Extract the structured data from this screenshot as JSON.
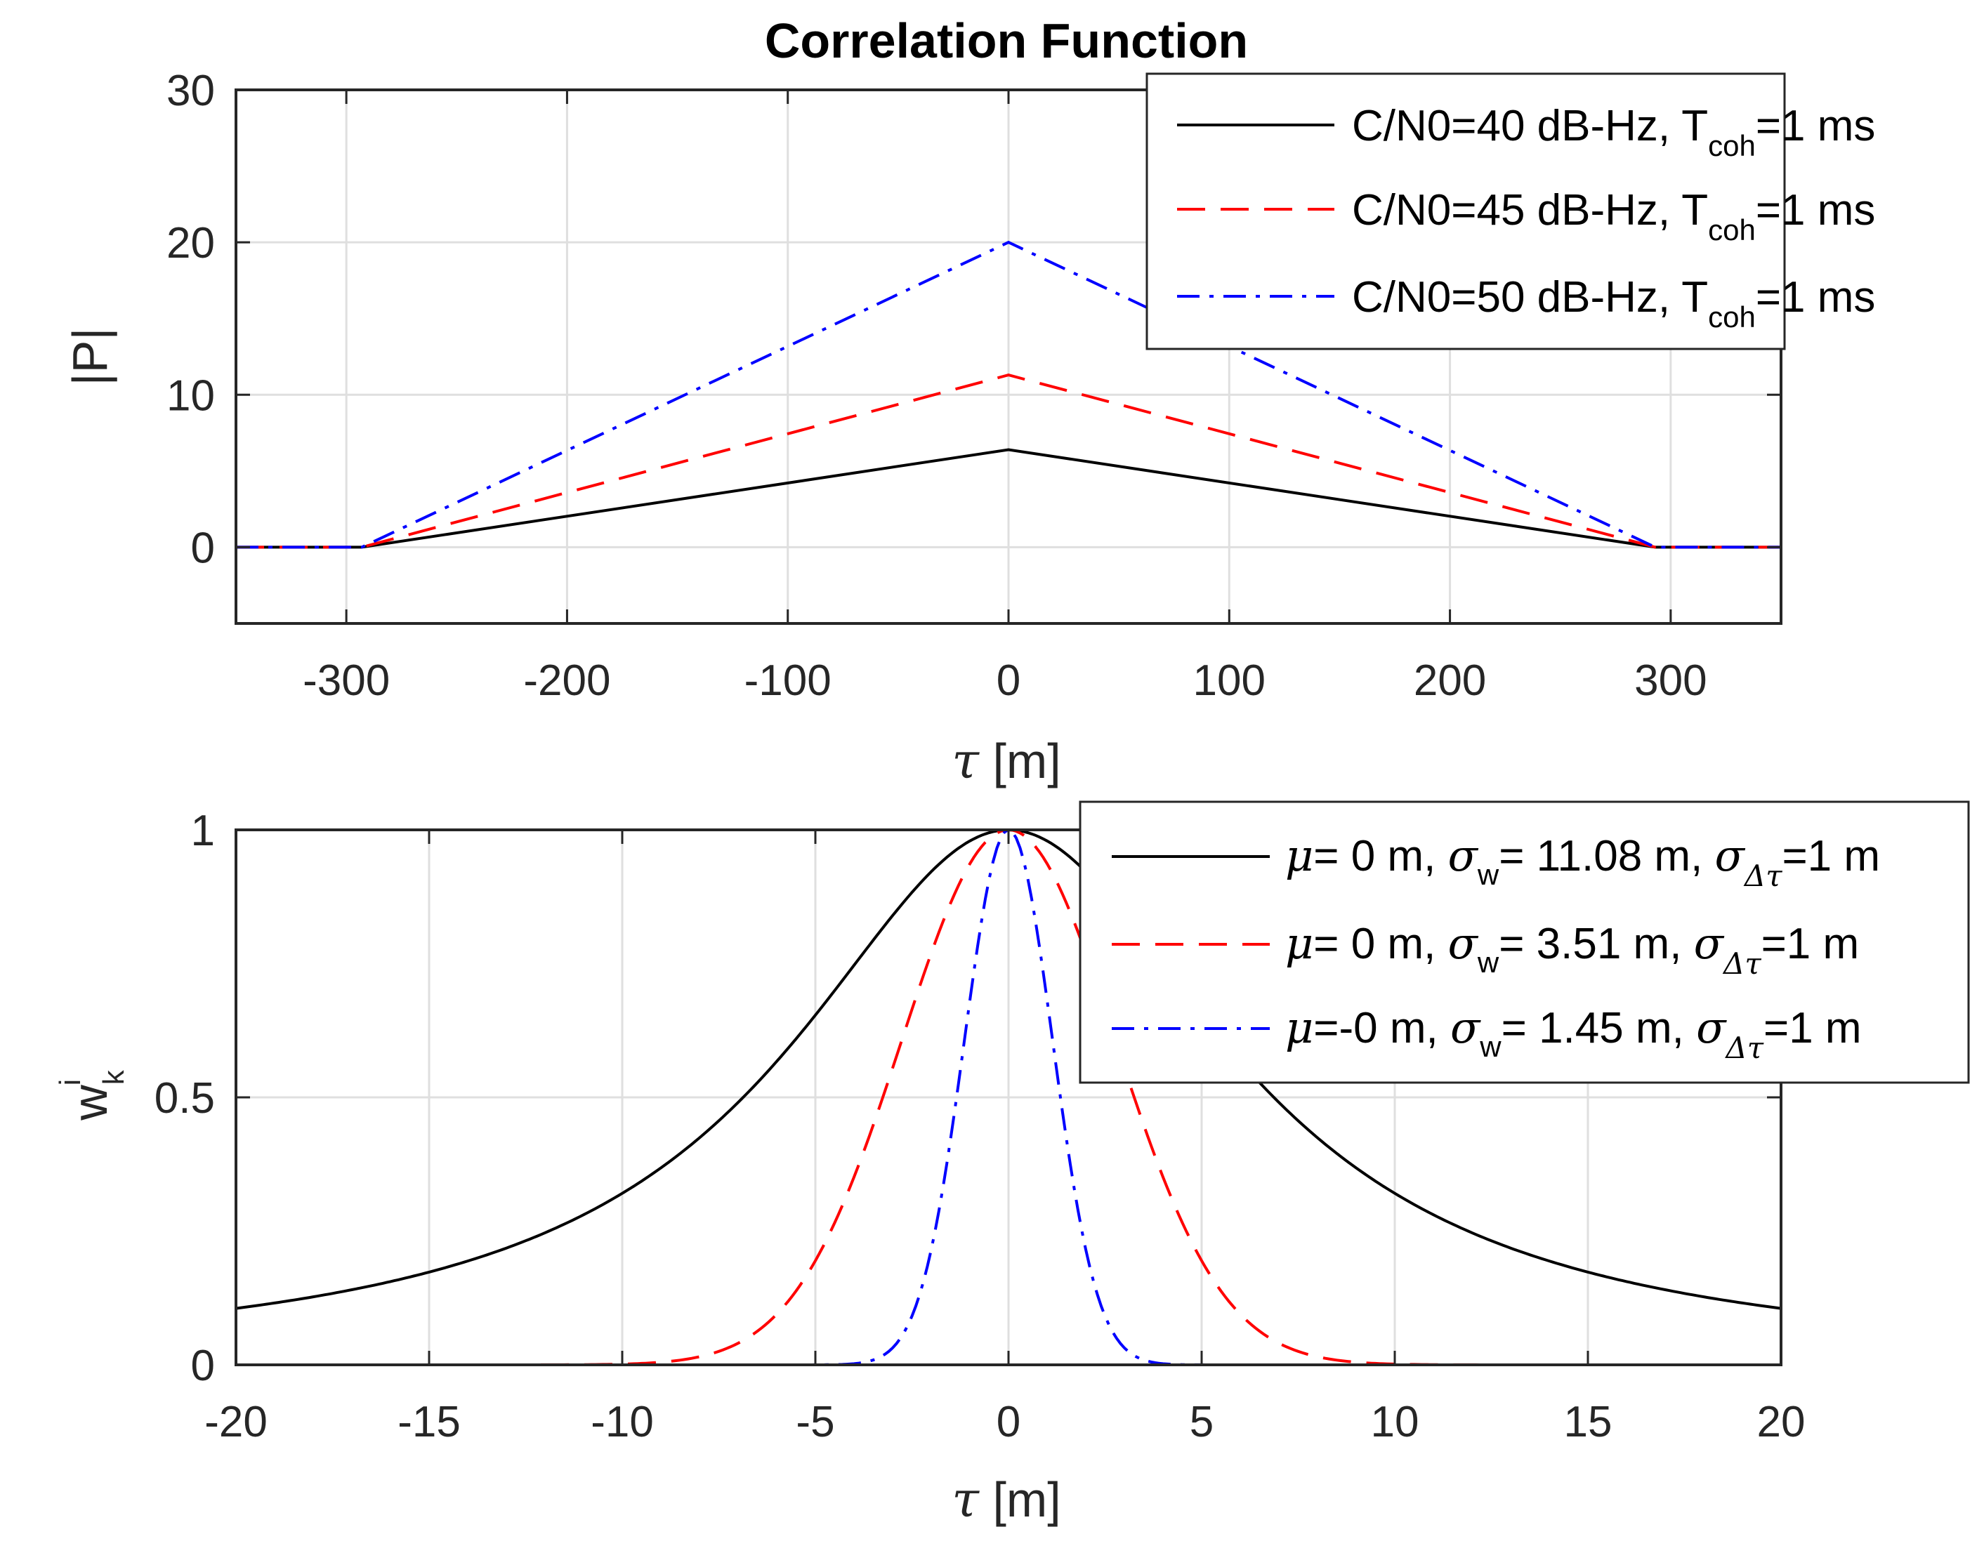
{
  "chart_data": [
    {
      "type": "line",
      "title": "Correlation Function",
      "xlabel_sym": "τ",
      "xlabel_unit": " [m]",
      "ylabel": "|P|",
      "xlim": [
        -350,
        350
      ],
      "ylim": [
        -5,
        30
      ],
      "xticks": [
        -300,
        -200,
        -100,
        0,
        100,
        200,
        300
      ],
      "yticks": [
        0,
        10,
        20,
        30
      ],
      "grid": true,
      "legend_position": "top-right",
      "series": [
        {
          "name": "C/N0=40 dB-Hz, T_coh=1 ms",
          "label_main": "C/N0=40 dB-Hz, T",
          "label_sub": "coh",
          "label_tail": "=1 ms",
          "color": "#000000",
          "style": "solid",
          "x": [
            -350,
            -293,
            0,
            293,
            350
          ],
          "y": [
            0,
            0,
            6.4,
            0,
            0
          ]
        },
        {
          "name": "C/N0=45 dB-Hz, T_coh=1 ms",
          "label_main": "C/N0=45 dB-Hz, T",
          "label_sub": "coh",
          "label_tail": "=1 ms",
          "color": "#ff0000",
          "style": "dashed",
          "x": [
            -350,
            -293,
            0,
            293,
            350
          ],
          "y": [
            0,
            0,
            11.3,
            0,
            0
          ]
        },
        {
          "name": "C/N0=50 dB-Hz, T_coh=1 ms",
          "label_main": "C/N0=50 dB-Hz, T",
          "label_sub": "coh",
          "label_tail": "=1 ms",
          "color": "#0000ff",
          "style": "dashdot",
          "x": [
            -350,
            -293,
            0,
            293,
            350
          ],
          "y": [
            0,
            0,
            20,
            0,
            0
          ]
        }
      ]
    },
    {
      "type": "line",
      "xlabel_sym": "τ",
      "xlabel_unit": " [m]",
      "ylabel_main": "w",
      "ylabel_sub": "k",
      "ylabel_sup": "i",
      "xlim": [
        -20,
        20
      ],
      "ylim": [
        0,
        1
      ],
      "xticks": [
        -20,
        -15,
        -10,
        -5,
        0,
        5,
        10,
        15,
        20
      ],
      "yticks": [
        0,
        0.5,
        1
      ],
      "grid": true,
      "legend_position": "top-right",
      "series": [
        {
          "name": "μ= 0 m, σ_w= 11.08 m, σ_Δτ=1 m",
          "mu": "= 0 m, ",
          "sw": "= 11.08 m, ",
          "sd": "=1 m",
          "color": "#000000",
          "style": "solid",
          "mu_val": 0,
          "sigma_w": 11.08,
          "sigma_dt": 1
        },
        {
          "name": "μ= 0 m, σ_w= 3.51 m, σ_Δτ=1 m",
          "mu": "= 0 m, ",
          "sw": "= 3.51 m, ",
          "sd": "=1 m",
          "color": "#ff0000",
          "style": "dashed",
          "mu_val": 0,
          "sigma_w": 3.51,
          "sigma_dt": 1
        },
        {
          "name": "μ=-0 m, σ_w= 1.45 m, σ_Δτ=1 m",
          "mu": "=-0 m, ",
          "sw": "= 1.45 m, ",
          "sd": "=1 m",
          "color": "#0000ff",
          "style": "dashdot",
          "mu_val": 0,
          "sigma_w": 1.45,
          "sigma_dt": 1
        }
      ],
      "symbols": {
        "mu": "μ",
        "sigma": "σ",
        "sub_w": "w",
        "sub_dt": "Δτ"
      }
    }
  ]
}
